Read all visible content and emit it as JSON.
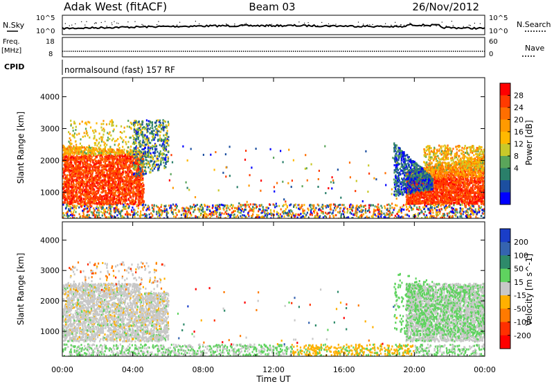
{
  "header": {
    "station": "Adak West (fitACF)",
    "beam": "Beam 03",
    "date": "26/Nov/2012"
  },
  "strips": {
    "nsky_label": "N.Sky",
    "nsky_ticks": [
      "10^5",
      "10^0"
    ],
    "nsearch_label": "N.Search",
    "nsearch_ticks": [
      "10^5",
      "10^0"
    ],
    "freq_label": "Freq.",
    "freq_unit": "[MHz]",
    "freq_ticks": [
      "18",
      "8"
    ],
    "nave_label": "Nave",
    "nave_ticks": [
      "60",
      "0"
    ],
    "cpid_label": "CPID",
    "cpid_value": "normalsound (fast) 157 RF"
  },
  "chart_data": [
    {
      "type": "heatmap",
      "panel": "power",
      "ylabel": "Slant Range [km]",
      "xlabel": "",
      "xlim": [
        "00:00",
        "24:00"
      ],
      "ylim": [
        180,
        4600
      ],
      "yticks": [
        1000,
        2000,
        3000,
        4000
      ],
      "colorbar_label": "Power [dB]",
      "colorbar_ticks": [
        "28",
        "24",
        "20",
        "16",
        "12",
        "8",
        "4"
      ],
      "colorbar_colors": [
        "#ff0000",
        "#ff3a00",
        "#ff6e00",
        "#ff9a00",
        "#ffb800",
        "#c9c92a",
        "#5aa55a",
        "#2a7f6a",
        "#1c4fa0",
        "#0000ff"
      ],
      "regions": [
        {
          "t_start": "00:00",
          "t_end": "04:30",
          "range_km": [
            700,
            2600
          ],
          "level": "strong"
        },
        {
          "t_start": "03:30",
          "t_end": "06:00",
          "range_km": [
            1600,
            3300
          ],
          "level": "mixed"
        },
        {
          "t_start": "18:45",
          "t_end": "24:00",
          "range_km": [
            700,
            3000
          ],
          "level": "strong"
        }
      ]
    },
    {
      "type": "heatmap",
      "panel": "velocity",
      "ylabel": "Slant Range [km]",
      "xlabel": "Time UT",
      "xlim": [
        "00:00",
        "24:00"
      ],
      "xticks": [
        "00:00",
        "04:00",
        "08:00",
        "12:00",
        "16:00",
        "20:00",
        "00:00"
      ],
      "ylim": [
        180,
        4600
      ],
      "yticks": [
        1000,
        2000,
        3000,
        4000
      ],
      "colorbar_label": "Velocity [m s^-1]",
      "colorbar_ticks": [
        "200",
        "100",
        "50",
        "15",
        "-15",
        "-50",
        "-100",
        "-200"
      ],
      "colorbar_colors": [
        "#1a3ec8",
        "#3564b0",
        "#2e8a6a",
        "#5fd35f",
        "#c8c8c8",
        "#ffb000",
        "#ff7a00",
        "#ff3000",
        "#ff0000"
      ],
      "regions": [
        {
          "t_start": "00:00",
          "t_end": "06:00",
          "range_km": [
            700,
            2600
          ],
          "level": "near-zero"
        },
        {
          "t_start": "18:45",
          "t_end": "24:00",
          "range_km": [
            700,
            3000
          ],
          "level": "near-zero-with-positive-arcs"
        },
        {
          "t_start": "13:00",
          "t_end": "20:00",
          "range_km": [
            180,
            600
          ],
          "level": "ground-scatter-orange"
        }
      ]
    }
  ]
}
